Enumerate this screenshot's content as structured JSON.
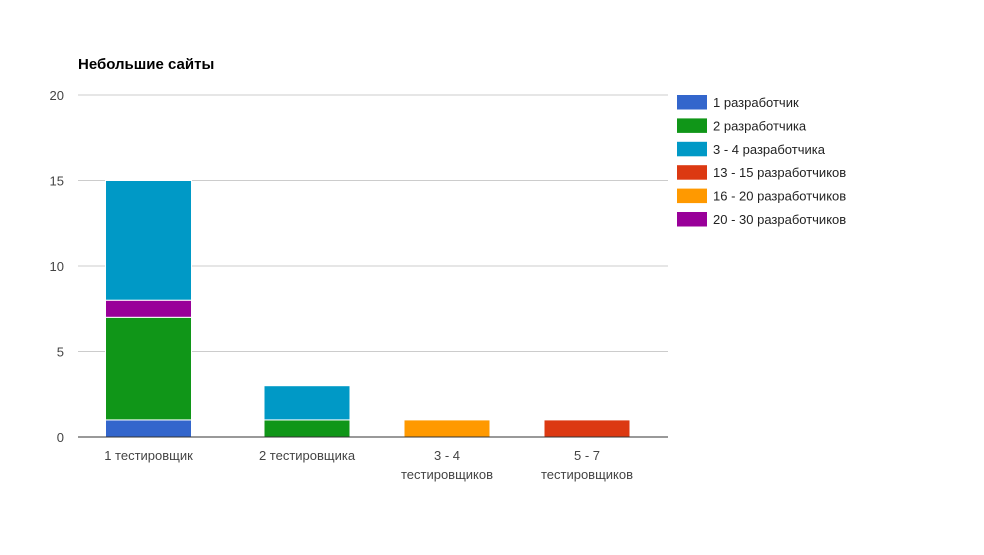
{
  "chart_data": {
    "type": "bar",
    "stacked": true,
    "title": "Небольшие сайты",
    "xlabel": "",
    "ylabel": "",
    "ylim": [
      0,
      20
    ],
    "yticks": [
      "0",
      "5",
      "10",
      "15",
      "20"
    ],
    "grid": true,
    "legend_position": "right",
    "categories": [
      [
        "1 тестировщик"
      ],
      [
        "2 тестировщика"
      ],
      [
        "3 - 4",
        "тестировщиков"
      ],
      [
        "5 - 7",
        "тестировщиков"
      ]
    ],
    "series": [
      {
        "name": "1 разработчик",
        "color": "#3366cc",
        "values": [
          1,
          0,
          0,
          0
        ]
      },
      {
        "name": "2 разработчика",
        "color": "#109618",
        "values": [
          6,
          1,
          0,
          0
        ]
      },
      {
        "name": "20 - 30 разработчиков",
        "color": "#990099",
        "values": [
          1,
          0,
          0,
          0
        ]
      },
      {
        "name": "3 - 4 разработчика",
        "color": "#0099c6",
        "values": [
          7,
          2,
          0,
          0
        ]
      },
      {
        "name": "16 - 20 разработчиков",
        "color": "#ff9900",
        "values": [
          0,
          0,
          1,
          0
        ]
      },
      {
        "name": "13 - 15 разработчиков",
        "color": "#dc3912",
        "values": [
          0,
          0,
          0,
          1
        ]
      }
    ],
    "legend_order": [
      "1 разработчик",
      "2 разработчика",
      "3 - 4 разработчика",
      "13 - 15 разработчиков",
      "16 - 20 разработчиков",
      "20 - 30 разработчиков"
    ]
  }
}
